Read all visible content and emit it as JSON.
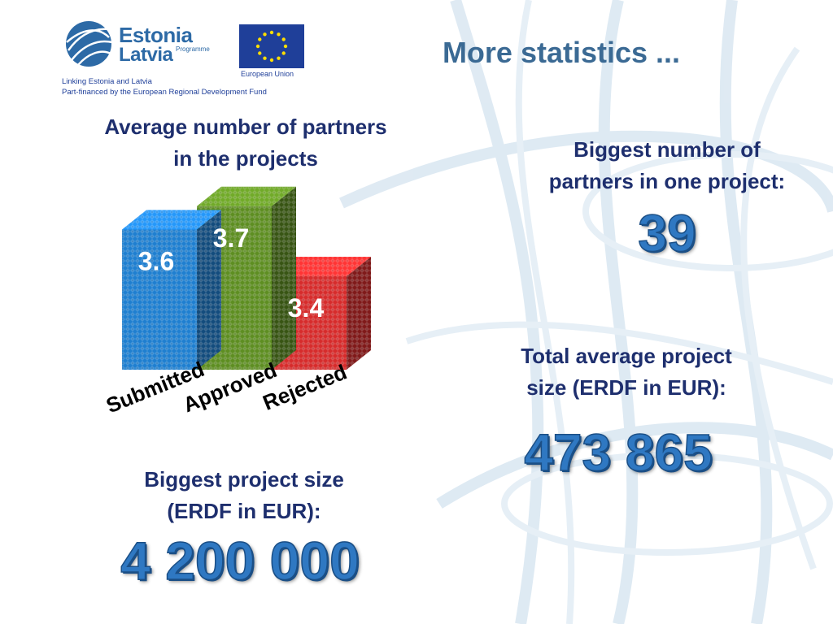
{
  "header": {
    "logo_estonia": "Estonia",
    "logo_latvia": "Latvia",
    "logo_programme": "Programme",
    "eu_label": "European Union",
    "logo_linking": "Linking Estonia and Latvia",
    "logo_financed": "Part-financed by the European Regional Development Fund",
    "title": "More statistics ..."
  },
  "chart_data": {
    "type": "bar",
    "title_line1": "Average number of partners",
    "title_line2": "in the projects",
    "categories": [
      "Submitted",
      "Approved",
      "Rejected"
    ],
    "values": [
      3.6,
      3.7,
      3.4
    ],
    "value_labels": [
      "3.6",
      "3.7",
      "3.4"
    ],
    "colors": [
      "#1f7fd0",
      "#5e8e22",
      "#d62c2c"
    ],
    "legend": "none",
    "grid": false
  },
  "stats": {
    "biggest_partners_line1": "Biggest number of",
    "biggest_partners_line2": "partners in one project:",
    "biggest_partners_value": "39",
    "total_average_line1": "Total average project",
    "total_average_line2": "size (ERDF in EUR):",
    "total_average_value": "473 865",
    "biggest_size_line1": "Biggest project size",
    "biggest_size_line2": "(ERDF in EUR):",
    "biggest_size_value": "4 200 000"
  },
  "colors": {
    "title": "#3b6a94",
    "text": "#1e2f6e",
    "number": "#2f78c2"
  }
}
